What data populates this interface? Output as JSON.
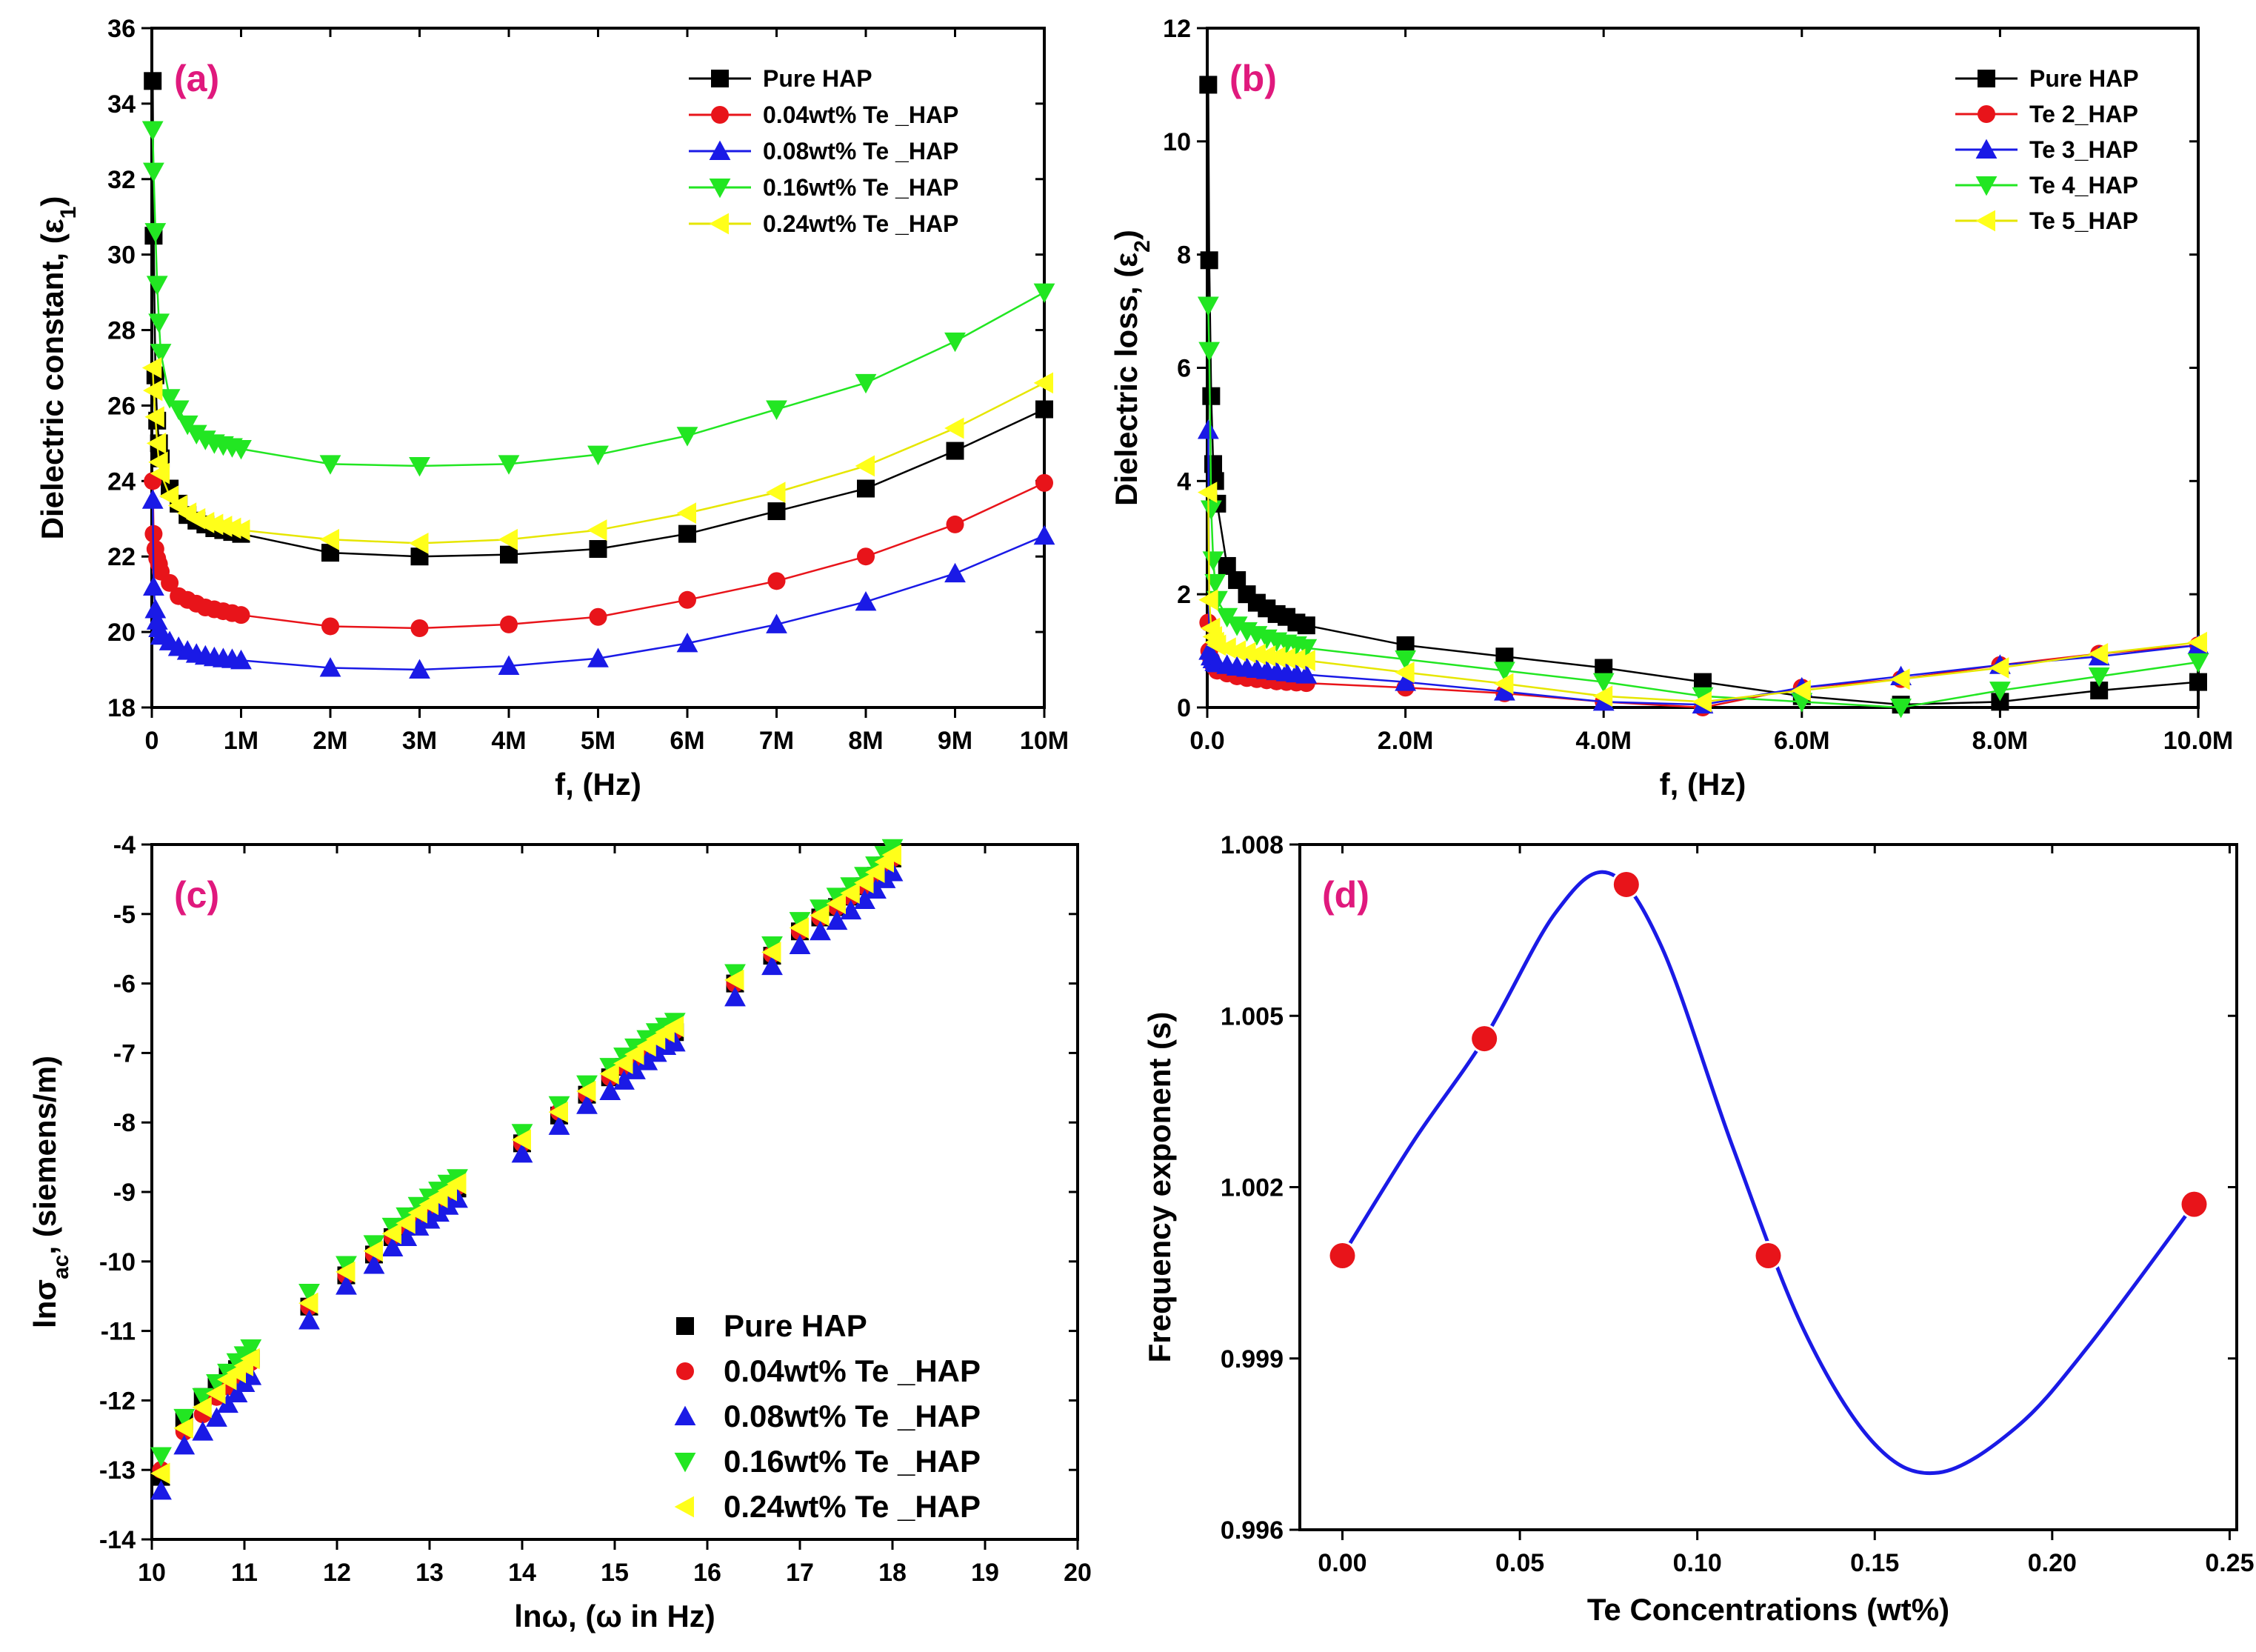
{
  "chart_data": [
    {
      "id": "a",
      "type": "line",
      "panel_label": "(a)",
      "xlabel": "f, (Hz)",
      "ylabel_main": "Dielectric constant, (ε",
      "ylabel_sub": "1",
      "ylabel_end": ")",
      "xlim": [
        0,
        10000000
      ],
      "ylim": [
        18,
        36
      ],
      "xticks": [
        0,
        1000000,
        2000000,
        3000000,
        4000000,
        5000000,
        6000000,
        7000000,
        8000000,
        9000000,
        10000000
      ],
      "xticklabels": [
        "0",
        "1M",
        "2M",
        "3M",
        "4M",
        "5M",
        "6M",
        "7M",
        "8M",
        "9M",
        "10M"
      ],
      "yticks": [
        18,
        20,
        22,
        24,
        26,
        28,
        30,
        32,
        34,
        36
      ],
      "yticklabels": [
        "18",
        "20",
        "22",
        "24",
        "26",
        "28",
        "30",
        "32",
        "34",
        "36"
      ],
      "x": [
        10000,
        20000,
        40000,
        60000,
        80000,
        100000,
        200000,
        300000,
        400000,
        500000,
        600000,
        700000,
        800000,
        900000,
        1000000,
        2000000,
        3000000,
        4000000,
        5000000,
        6000000,
        7000000,
        8000000,
        9000000,
        10000000
      ],
      "series": [
        {
          "name": "Pure HAP",
          "color": "#000000",
          "marker": "square",
          "values": [
            34.6,
            30.5,
            26.8,
            25.6,
            25.0,
            24.6,
            23.8,
            23.4,
            23.1,
            22.95,
            22.85,
            22.75,
            22.7,
            22.65,
            22.6,
            22.1,
            22.0,
            22.05,
            22.2,
            22.6,
            23.2,
            23.8,
            24.8,
            25.9
          ]
        },
        {
          "name": "0.04wt% Te _HAP",
          "color": "#e8141a",
          "marker": "circle",
          "values": [
            24.0,
            22.6,
            22.2,
            21.95,
            21.8,
            21.6,
            21.3,
            20.95,
            20.85,
            20.75,
            20.65,
            20.6,
            20.55,
            20.5,
            20.45,
            20.15,
            20.1,
            20.2,
            20.4,
            20.85,
            21.35,
            22.0,
            22.85,
            23.95
          ]
        },
        {
          "name": "0.08wt% Te _HAP",
          "color": "#1a1ae6",
          "marker": "triangle-up",
          "values": [
            23.5,
            21.2,
            20.6,
            20.3,
            20.1,
            19.9,
            19.75,
            19.6,
            19.5,
            19.42,
            19.37,
            19.33,
            19.3,
            19.28,
            19.25,
            19.05,
            19.0,
            19.1,
            19.3,
            19.7,
            20.2,
            20.8,
            21.55,
            22.55
          ]
        },
        {
          "name": "0.16wt% Te _HAP",
          "color": "#22e622",
          "marker": "triangle-down",
          "values": [
            33.3,
            32.2,
            30.6,
            29.2,
            28.2,
            27.4,
            26.2,
            25.9,
            25.5,
            25.25,
            25.1,
            25.0,
            24.95,
            24.9,
            24.85,
            24.45,
            24.4,
            24.45,
            24.7,
            25.2,
            25.9,
            26.6,
            27.7,
            29.0
          ]
        },
        {
          "name": "0.24wt% Te _HAP",
          "color": "#ffff1a",
          "marker": "triangle-left",
          "values": [
            27.0,
            26.4,
            25.7,
            25.0,
            24.5,
            24.2,
            23.6,
            23.35,
            23.15,
            23.0,
            22.9,
            22.85,
            22.8,
            22.75,
            22.7,
            22.45,
            22.35,
            22.45,
            22.7,
            23.15,
            23.7,
            24.4,
            25.4,
            26.6
          ]
        }
      ],
      "legend_position": "top-right"
    },
    {
      "id": "b",
      "type": "line",
      "panel_label": "(b)",
      "xlabel": "f, (Hz)",
      "ylabel_main": "Dielectric loss, (ε",
      "ylabel_sub": "2",
      "ylabel_end": ")",
      "xlim": [
        0,
        10000000
      ],
      "ylim": [
        0,
        12
      ],
      "xticks": [
        0,
        2000000,
        4000000,
        6000000,
        8000000,
        10000000
      ],
      "xticklabels": [
        "0.0",
        "2.0M",
        "4.0M",
        "6.0M",
        "8.0M",
        "10.0M"
      ],
      "yticks": [
        0,
        2,
        4,
        6,
        8,
        10,
        12
      ],
      "yticklabels": [
        "0",
        "2",
        "4",
        "6",
        "8",
        "10",
        "12"
      ],
      "x": [
        10000,
        20000,
        40000,
        60000,
        80000,
        100000,
        200000,
        300000,
        400000,
        500000,
        600000,
        700000,
        800000,
        900000,
        1000000,
        2000000,
        3000000,
        4000000,
        5000000,
        6000000,
        7000000,
        8000000,
        9000000,
        10000000
      ],
      "series": [
        {
          "name": "Pure HAP",
          "color": "#000000",
          "marker": "square",
          "values": [
            11.0,
            7.9,
            5.5,
            4.3,
            4.0,
            3.6,
            2.5,
            2.25,
            2.0,
            1.85,
            1.75,
            1.65,
            1.6,
            1.5,
            1.45,
            1.1,
            0.9,
            0.7,
            0.45,
            0.2,
            0.05,
            0.1,
            0.3,
            0.45
          ]
        },
        {
          "name": "Te 2_HAP",
          "color": "#e8141a",
          "marker": "circle",
          "values": [
            1.5,
            1.0,
            0.85,
            0.75,
            0.7,
            0.65,
            0.6,
            0.55,
            0.52,
            0.5,
            0.48,
            0.46,
            0.45,
            0.44,
            0.43,
            0.35,
            0.25,
            0.1,
            0.0,
            0.35,
            0.5,
            0.75,
            0.95,
            1.1
          ]
        },
        {
          "name": "Te 3_HAP",
          "color": "#1a1ae6",
          "marker": "triangle-up",
          "values": [
            4.9,
            1.0,
            0.9,
            0.85,
            0.8,
            0.78,
            0.75,
            0.72,
            0.7,
            0.68,
            0.66,
            0.64,
            0.62,
            0.6,
            0.58,
            0.45,
            0.28,
            0.1,
            0.05,
            0.35,
            0.55,
            0.75,
            0.9,
            1.1
          ]
        },
        {
          "name": "Te 4_HAP",
          "color": "#22e622",
          "marker": "triangle-down",
          "values": [
            7.1,
            6.3,
            3.5,
            2.6,
            2.2,
            1.9,
            1.6,
            1.45,
            1.35,
            1.28,
            1.22,
            1.17,
            1.13,
            1.1,
            1.05,
            0.85,
            0.65,
            0.45,
            0.2,
            0.1,
            0.0,
            0.3,
            0.55,
            0.8
          ]
        },
        {
          "name": "Te 5_HAP",
          "color": "#ffff1a",
          "marker": "triangle-left",
          "values": [
            3.8,
            1.9,
            1.4,
            1.25,
            1.15,
            1.1,
            1.05,
            1.0,
            0.97,
            0.94,
            0.91,
            0.89,
            0.87,
            0.85,
            0.83,
            0.62,
            0.42,
            0.2,
            0.1,
            0.3,
            0.5,
            0.7,
            0.95,
            1.15
          ]
        }
      ],
      "legend_position": "top-right"
    },
    {
      "id": "c",
      "type": "scatter",
      "panel_label": "(c)",
      "xlabel_main": "lnω, (ω in Hz)",
      "ylabel_main": "lnσ",
      "ylabel_sub": "ac",
      "ylabel_end": ", (siemens/m)",
      "xlim": [
        10,
        20
      ],
      "ylim": [
        -14,
        -4
      ],
      "xticks": [
        10,
        11,
        12,
        13,
        14,
        15,
        16,
        17,
        18,
        19,
        20
      ],
      "xticklabels": [
        "10",
        "11",
        "12",
        "13",
        "14",
        "15",
        "16",
        "17",
        "18",
        "19",
        "20"
      ],
      "yticks": [
        -14,
        -13,
        -12,
        -11,
        -10,
        -9,
        -8,
        -7,
        -6,
        -5,
        -4
      ],
      "yticklabels": [
        "-14",
        "-13",
        "-12",
        "-11",
        "-10",
        "-9",
        "-8",
        "-7",
        "-6",
        "-5",
        "-4"
      ],
      "x": [
        10.1,
        10.35,
        10.55,
        10.7,
        10.82,
        10.92,
        11.0,
        11.07,
        11.7,
        12.1,
        12.4,
        12.6,
        12.75,
        12.88,
        13.0,
        13.1,
        13.2,
        13.3,
        14.0,
        14.4,
        14.7,
        14.95,
        15.1,
        15.22,
        15.35,
        15.45,
        15.55,
        15.65,
        16.3,
        16.7,
        17.0,
        17.22,
        17.4,
        17.55,
        17.7,
        17.82,
        17.92,
        18.0
      ],
      "series": [
        {
          "name": "Pure HAP",
          "color": "#000000",
          "marker": "square",
          "values": [
            -13.1,
            -12.3,
            -11.95,
            -11.8,
            -11.65,
            -11.55,
            -11.45,
            -11.4,
            -10.65,
            -10.2,
            -9.9,
            -9.65,
            -9.5,
            -9.35,
            -9.25,
            -9.15,
            -9.05,
            -8.95,
            -8.3,
            -7.9,
            -7.6,
            -7.35,
            -7.2,
            -7.1,
            -6.95,
            -6.85,
            -6.75,
            -6.7,
            -6.0,
            -5.6,
            -5.25,
            -5.05,
            -4.9,
            -4.75,
            -4.6,
            -4.45,
            -4.3,
            -4.2
          ]
        },
        {
          "name": "0.04wt% Te _HAP",
          "color": "#e8141a",
          "marker": "circle",
          "values": [
            -13.0,
            -12.45,
            -12.2,
            -11.95,
            -11.8,
            -11.65,
            -11.55,
            -11.45,
            -10.65,
            -10.2,
            -9.9,
            -9.65,
            -9.5,
            -9.35,
            -9.22,
            -9.12,
            -9.02,
            -8.92,
            -8.3,
            -7.85,
            -7.6,
            -7.35,
            -7.2,
            -7.08,
            -6.95,
            -6.85,
            -6.75,
            -6.68,
            -6.0,
            -5.58,
            -5.25,
            -5.05,
            -4.9,
            -4.75,
            -4.6,
            -4.45,
            -4.3,
            -4.2
          ]
        },
        {
          "name": "0.08wt% Te _HAP",
          "color": "#1a1ae6",
          "marker": "triangle-up",
          "values": [
            -13.3,
            -12.65,
            -12.45,
            -12.25,
            -12.05,
            -11.9,
            -11.75,
            -11.65,
            -10.85,
            -10.35,
            -10.05,
            -9.8,
            -9.65,
            -9.5,
            -9.4,
            -9.3,
            -9.2,
            -9.1,
            -8.45,
            -8.05,
            -7.75,
            -7.55,
            -7.4,
            -7.25,
            -7.12,
            -7.0,
            -6.9,
            -6.85,
            -6.2,
            -5.75,
            -5.45,
            -5.25,
            -5.1,
            -4.95,
            -4.8,
            -4.65,
            -4.5,
            -4.4
          ]
        },
        {
          "name": "0.16wt% Te _HAP",
          "color": "#22e622",
          "marker": "triangle-down",
          "values": [
            -12.8,
            -12.25,
            -11.95,
            -11.75,
            -11.6,
            -11.45,
            -11.35,
            -11.25,
            -10.45,
            -10.05,
            -9.75,
            -9.5,
            -9.35,
            -9.2,
            -9.08,
            -8.98,
            -8.88,
            -8.8,
            -8.15,
            -7.75,
            -7.45,
            -7.2,
            -7.05,
            -6.92,
            -6.8,
            -6.7,
            -6.62,
            -6.55,
            -5.85,
            -5.45,
            -5.1,
            -4.92,
            -4.75,
            -4.6,
            -4.45,
            -4.3,
            -4.15,
            -4.05
          ]
        },
        {
          "name": "0.24wt% Te _HAP",
          "color": "#ffff1a",
          "marker": "triangle-left",
          "values": [
            -13.05,
            -12.4,
            -12.1,
            -11.9,
            -11.7,
            -11.6,
            -11.5,
            -11.4,
            -10.6,
            -10.15,
            -9.85,
            -9.6,
            -9.45,
            -9.3,
            -9.18,
            -9.08,
            -8.98,
            -8.88,
            -8.25,
            -7.85,
            -7.55,
            -7.3,
            -7.15,
            -7.02,
            -6.9,
            -6.8,
            -6.7,
            -6.62,
            -5.95,
            -5.55,
            -5.2,
            -5.02,
            -4.85,
            -4.7,
            -4.55,
            -4.4,
            -4.25,
            -4.15
          ]
        }
      ],
      "legend_position": "bottom-right"
    },
    {
      "id": "d",
      "type": "scatter",
      "panel_label": "(d)",
      "xlabel": "Te Concentrations (wt%)",
      "ylabel": "Frequency exponent (s)",
      "xlim": [
        -0.012,
        0.252
      ],
      "ylim": [
        0.996,
        1.008
      ],
      "xticks": [
        0.0,
        0.05,
        0.1,
        0.15,
        0.2,
        0.25
      ],
      "xticklabels": [
        "0.00",
        "0.05",
        "0.10",
        "0.15",
        "0.20",
        "0.25"
      ],
      "yticks": [
        0.996,
        0.999,
        1.002,
        1.005,
        1.008
      ],
      "yticklabels": [
        "0.996",
        "0.999",
        "1.002",
        "1.005",
        "1.008"
      ],
      "points": {
        "x": [
          0.0,
          0.04,
          0.08,
          0.12,
          0.24
        ],
        "y": [
          1.0008,
          1.0046,
          1.0073,
          1.0008,
          1.0017
        ]
      },
      "curve": {
        "x": [
          0.0,
          0.02,
          0.04,
          0.06,
          0.075,
          0.09,
          0.11,
          0.13,
          0.15,
          0.168,
          0.19,
          0.21,
          0.24
        ],
        "y": [
          1.0008,
          1.0028,
          1.0046,
          1.0068,
          1.0075,
          1.0062,
          1.0027,
          0.9995,
          0.9975,
          0.997,
          0.9978,
          0.9992,
          1.0017
        ]
      },
      "point_color": "#e8141a",
      "curve_color": "#1a1ae6"
    }
  ]
}
